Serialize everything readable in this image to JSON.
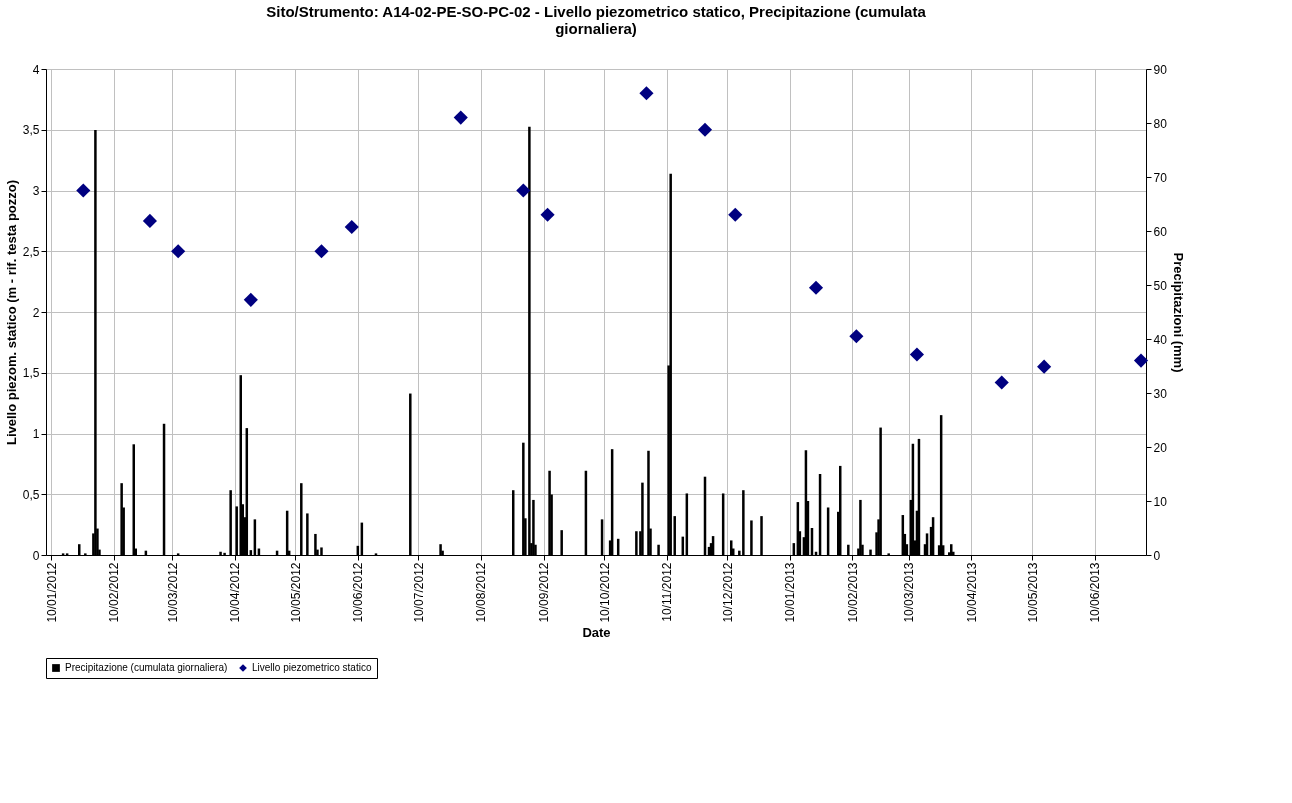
{
  "chart_data": {
    "type": "scatter",
    "title": "Sito/Strumento: A14-02-PE-SO-PC-02 - Livello piezometrico statico, Precipitazione (cumulata giornaliera)",
    "xlabel": "Date",
    "ylabel": "Livello piezom. statico (m - rif. testa pozzo)",
    "y2label": "Precipitazioni (mm)",
    "series": [
      {
        "name": "Precipitazione (cumulata giornaliera)",
        "type": "bar",
        "axis": "y2",
        "color": "#000000",
        "x": [
          "2012-01-16",
          "2012-01-18",
          "2012-01-24",
          "2012-01-27",
          "2012-01-31",
          "2012-02-01",
          "2012-02-02",
          "2012-02-03",
          "2012-02-14",
          "2012-02-15",
          "2012-02-20",
          "2012-02-21",
          "2012-02-26",
          "2012-03-06",
          "2012-03-13",
          "2012-04-03",
          "2012-04-05",
          "2012-04-08",
          "2012-04-11",
          "2012-04-13",
          "2012-04-14",
          "2012-04-15",
          "2012-04-16",
          "2012-04-18",
          "2012-04-20",
          "2012-04-22",
          "2012-05-01",
          "2012-05-06",
          "2012-05-07",
          "2012-05-13",
          "2012-05-16",
          "2012-05-20",
          "2012-05-21",
          "2012-05-23",
          "2012-06-10",
          "2012-06-12",
          "2012-06-19",
          "2012-07-06",
          "2012-07-21",
          "2012-07-22",
          "2012-08-26",
          "2012-08-31",
          "2012-09-01",
          "2012-09-03",
          "2012-09-04",
          "2012-09-05",
          "2012-09-06",
          "2012-09-13",
          "2012-09-14",
          "2012-09-19",
          "2012-10-01",
          "2012-10-09",
          "2012-10-13",
          "2012-10-14",
          "2012-10-17",
          "2012-10-26",
          "2012-10-28",
          "2012-10-29",
          "2012-11-01",
          "2012-11-02",
          "2012-11-06",
          "2012-11-11",
          "2012-11-12",
          "2012-11-14",
          "2012-11-18",
          "2012-11-20",
          "2012-11-29",
          "2012-12-01",
          "2012-12-02",
          "2012-12-03",
          "2012-12-08",
          "2012-12-12",
          "2012-12-13",
          "2012-12-16",
          "2012-12-18",
          "2012-12-22",
          "2012-12-27",
          "2013-01-12",
          "2013-01-14",
          "2013-01-15",
          "2013-01-17",
          "2013-01-18",
          "2013-01-19",
          "2013-01-21",
          "2013-01-23",
          "2013-01-25",
          "2013-01-29",
          "2013-02-03",
          "2013-02-04",
          "2013-02-08",
          "2013-02-13",
          "2013-02-14",
          "2013-02-15",
          "2013-02-19",
          "2013-02-22",
          "2013-02-23",
          "2013-02-24",
          "2013-02-28",
          "2013-03-07",
          "2013-03-08",
          "2013-03-09",
          "2013-03-11",
          "2013-03-12",
          "2013-03-13",
          "2013-03-14",
          "2013-03-15",
          "2013-03-18",
          "2013-03-19",
          "2013-03-21",
          "2013-03-22",
          "2013-03-25",
          "2013-03-26",
          "2013-03-27",
          "2013-03-30",
          "2013-03-31",
          "2013-04-01"
        ],
        "values": [
          0.3,
          0.3,
          2.0,
          0.3,
          4.0,
          78.7,
          4.9,
          1.0,
          13.3,
          8.8,
          20.5,
          1.2,
          0.8,
          24.3,
          0.3,
          0.6,
          0.4,
          12.0,
          9.0,
          33.3,
          9.4,
          7.0,
          23.5,
          0.9,
          6.6,
          1.2,
          0.8,
          8.2,
          0.8,
          13.3,
          7.7,
          3.9,
          1.0,
          1.4,
          1.7,
          6.0,
          0.3,
          29.9,
          2.0,
          0.8,
          12.0,
          20.8,
          6.8,
          79.3,
          2.2,
          10.2,
          1.9,
          15.6,
          11.2,
          4.6,
          15.6,
          6.6,
          2.7,
          19.6,
          3.0,
          4.4,
          4.4,
          13.4,
          19.3,
          4.9,
          1.9,
          35.1,
          70.6,
          7.2,
          3.4,
          11.4,
          14.5,
          1.5,
          2.2,
          3.5,
          11.4,
          2.7,
          1.2,
          0.8,
          12.0,
          6.4,
          7.2,
          2.2,
          9.8,
          4.4,
          3.3,
          19.4,
          10.0,
          5.0,
          0.6,
          15.0,
          8.8,
          8.0,
          16.5,
          1.9,
          1.2,
          10.2,
          1.9,
          1.0,
          4.2,
          6.6,
          23.6,
          0.3,
          7.4,
          3.9,
          2.0,
          10.2,
          20.6,
          2.7,
          8.2,
          21.5,
          2.0,
          4.0,
          5.2,
          7.0,
          1.8,
          25.9,
          1.8,
          0.5,
          2.0,
          0.6
        ]
      },
      {
        "name": "Livello piezometrico statico",
        "color": "#000080",
        "x": [
          "2012-01-26",
          "2012-02-28",
          "2012-03-13",
          "2012-04-18",
          "2012-05-23",
          "2012-06-07",
          "2012-07-31",
          "2012-08-31",
          "2012-09-12",
          "2012-10-31",
          "2012-11-29",
          "2012-12-14",
          "2013-01-23",
          "2013-02-12",
          "2013-03-14",
          "2013-04-25",
          "2013-05-16",
          "2013-07-03"
        ],
        "values": [
          3.0,
          2.75,
          2.5,
          2.1,
          2.5,
          2.7,
          3.6,
          3.0,
          2.8,
          3.8,
          3.5,
          2.8,
          2.2,
          1.8,
          1.65,
          1.42,
          1.55,
          1.6
        ]
      }
    ],
    "xlim": [
      "2012-01-10",
      "2013-07-03"
    ],
    "xticks": [
      {
        "value": "2012-01-10",
        "label": "10/01/2012"
      },
      {
        "value": "2012-02-10",
        "label": "10/02/2012"
      },
      {
        "value": "2012-03-10",
        "label": "10/03/2012"
      },
      {
        "value": "2012-04-10",
        "label": "10/04/2012"
      },
      {
        "value": "2012-05-10",
        "label": "10/05/2012"
      },
      {
        "value": "2012-06-10",
        "label": "10/06/2012"
      },
      {
        "value": "2012-07-10",
        "label": "10/07/2012"
      },
      {
        "value": "2012-08-10",
        "label": "10/08/2012"
      },
      {
        "value": "2012-09-10",
        "label": "10/09/2012"
      },
      {
        "value": "2012-10-10",
        "label": "10/10/2012"
      },
      {
        "value": "2012-11-10",
        "label": "10/11/2012"
      },
      {
        "value": "2012-12-10",
        "label": "10/12/2012"
      },
      {
        "value": "2013-01-10",
        "label": "10/01/2013"
      },
      {
        "value": "2013-02-10",
        "label": "10/02/2013"
      },
      {
        "value": "2013-03-10",
        "label": "10/03/2013"
      },
      {
        "value": "2013-04-10",
        "label": "10/04/2013"
      },
      {
        "value": "2013-05-10",
        "label": "10/05/2013"
      },
      {
        "value": "2013-06-10",
        "label": "10/06/2013"
      }
    ],
    "ylim": [
      0,
      4
    ],
    "yticks": [
      0,
      {
        "value": 0.5,
        "label": "0,5"
      },
      1,
      {
        "value": 1.5,
        "label": "1,5"
      },
      2,
      {
        "value": 2.5,
        "label": "2,5"
      },
      3,
      {
        "value": 3.5,
        "label": "3,5"
      },
      4
    ],
    "y2lim": [
      0,
      90
    ],
    "y2ticks": [
      0,
      10,
      20,
      30,
      40,
      50,
      60,
      70,
      80,
      90
    ],
    "marker": "diamond",
    "grid": true,
    "legend": "bottom"
  }
}
